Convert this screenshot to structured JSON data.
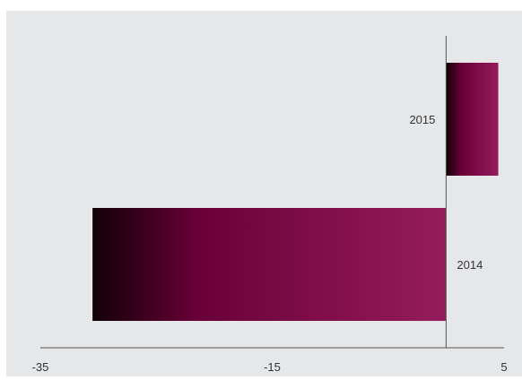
{
  "chart_data": {
    "type": "bar",
    "orientation": "horizontal",
    "categories": [
      "2014",
      "2015"
    ],
    "values": [
      -30.5,
      4.5
    ],
    "xlim": [
      -35,
      5
    ],
    "xticks": [
      -35,
      -15,
      5
    ],
    "xtick_labels": [
      "-35",
      "-15",
      "5"
    ],
    "title": "",
    "xlabel": "",
    "ylabel": "",
    "grid": false,
    "legend": "none",
    "colors": {
      "background": "#e6e7e9",
      "bar_gradient_start": "#120006",
      "bar_gradient_mid": "#6a0038",
      "bar_gradient_end": "#951c5c",
      "axis": "#555555"
    }
  }
}
